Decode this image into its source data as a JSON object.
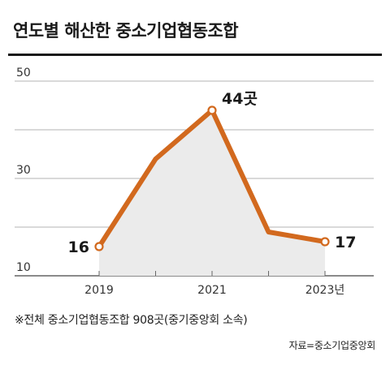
{
  "colors": {
    "line": "#d2691e",
    "area": "#ebebeb",
    "grid": "#9a9a9a",
    "text": "#222222"
  },
  "chart_data": {
    "type": "line",
    "title": "연도별 해산한 중소기업협동조합",
    "x": [
      2019,
      2020,
      2021,
      2022,
      2023
    ],
    "x_tick_labels": [
      "2019",
      "",
      "2021",
      "",
      "2023년"
    ],
    "series": [
      {
        "values": [
          16,
          34,
          44,
          19,
          17
        ]
      }
    ],
    "data_labels": [
      {
        "index": 0,
        "text": "16"
      },
      {
        "index": 2,
        "text": "44곳"
      },
      {
        "index": 4,
        "text": "17"
      }
    ],
    "y_ticks": [
      "10",
      "30",
      "50"
    ],
    "ylim": [
      10,
      50
    ],
    "grid": true,
    "area_fill": true
  },
  "footnote": "※전체 중소기업협동조합 908곳(중기중앙회 소속)",
  "source": "자료=중소기업중앙회"
}
